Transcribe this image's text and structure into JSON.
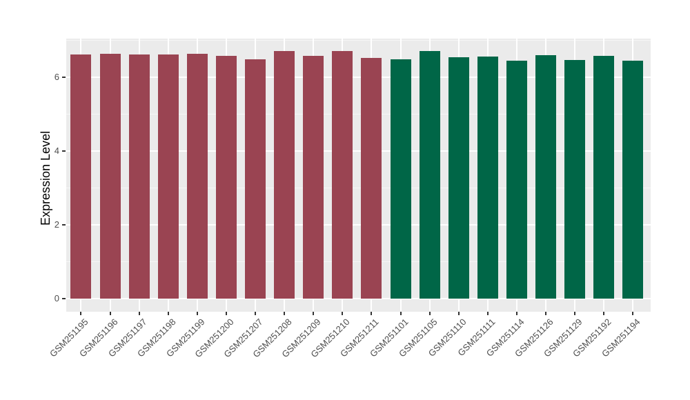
{
  "figure": {
    "background_color": "#FFFFFF",
    "panel_background_color": "#EBEBEB",
    "grid_major_color": "#FFFFFF",
    "grid_minor_color": "#F6F6F6",
    "tick_mark_color": "#333333",
    "tick_label_color": "#4D4D4D",
    "axis_title_color": "#000000"
  },
  "chart_data": {
    "type": "bar",
    "title": "",
    "xlabel": "",
    "ylabel": "Expression Level",
    "ylim": [
      0,
      7.06
    ],
    "yticks": [
      0,
      2,
      4,
      6
    ],
    "yticks_minor": [
      1,
      3,
      5,
      7
    ],
    "grid": true,
    "legend_position": "none",
    "x_label_rotation_deg": 45,
    "group_colors": {
      "group1": "#9A4452",
      "group2": "#006647"
    },
    "categories": [
      "GSM251195",
      "GSM251196",
      "GSM251197",
      "GSM251198",
      "GSM251199",
      "GSM251200",
      "GSM251207",
      "GSM251208",
      "GSM251209",
      "GSM251210",
      "GSM251211",
      "GSM251101",
      "GSM251105",
      "GSM251110",
      "GSM251111",
      "GSM251114",
      "GSM251126",
      "GSM251129",
      "GSM251192",
      "GSM251194"
    ],
    "bars": [
      {
        "label": "GSM251195",
        "value": 6.62,
        "group": "group1"
      },
      {
        "label": "GSM251196",
        "value": 6.64,
        "group": "group1"
      },
      {
        "label": "GSM251197",
        "value": 6.62,
        "group": "group1"
      },
      {
        "label": "GSM251198",
        "value": 6.63,
        "group": "group1"
      },
      {
        "label": "GSM251199",
        "value": 6.64,
        "group": "group1"
      },
      {
        "label": "GSM251200",
        "value": 6.59,
        "group": "group1"
      },
      {
        "label": "GSM251207",
        "value": 6.49,
        "group": "group1"
      },
      {
        "label": "GSM251208",
        "value": 6.71,
        "group": "group1"
      },
      {
        "label": "GSM251209",
        "value": 6.59,
        "group": "group1"
      },
      {
        "label": "GSM251210",
        "value": 6.72,
        "group": "group1"
      },
      {
        "label": "GSM251211",
        "value": 6.54,
        "group": "group1"
      },
      {
        "label": "GSM251101",
        "value": 6.5,
        "group": "group2"
      },
      {
        "label": "GSM251105",
        "value": 6.71,
        "group": "group2"
      },
      {
        "label": "GSM251110",
        "value": 6.55,
        "group": "group2"
      },
      {
        "label": "GSM251111",
        "value": 6.57,
        "group": "group2"
      },
      {
        "label": "GSM251114",
        "value": 6.45,
        "group": "group2"
      },
      {
        "label": "GSM251126",
        "value": 6.61,
        "group": "group2"
      },
      {
        "label": "GSM251129",
        "value": 6.48,
        "group": "group2"
      },
      {
        "label": "GSM251192",
        "value": 6.58,
        "group": "group2"
      },
      {
        "label": "GSM251194",
        "value": 6.46,
        "group": "group2"
      }
    ]
  }
}
